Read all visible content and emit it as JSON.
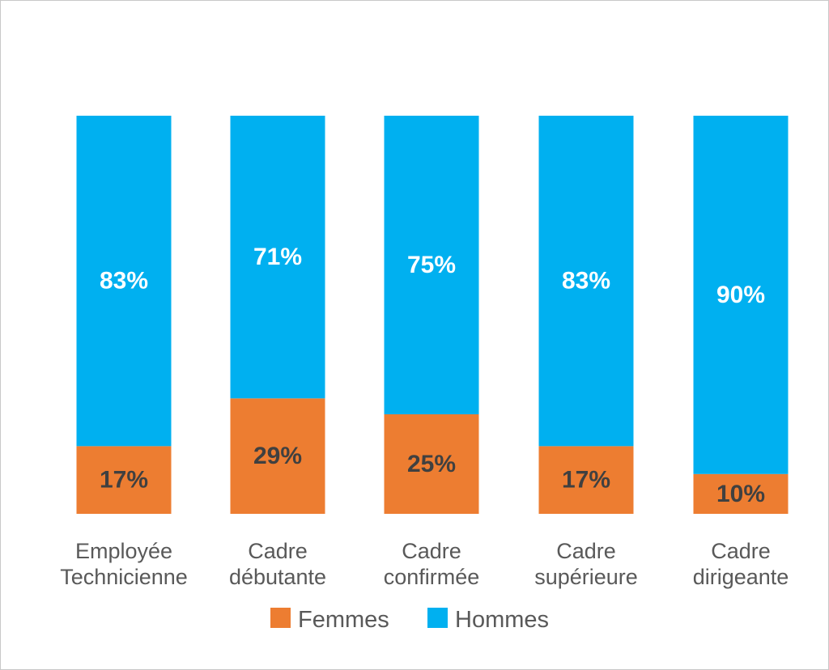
{
  "chart_data": {
    "type": "bar",
    "stacked": true,
    "categories": [
      [
        "Employée",
        "Technicienne"
      ],
      [
        "Cadre",
        "débutante"
      ],
      [
        "Cadre",
        "confirmée"
      ],
      [
        "Cadre",
        "supérieure"
      ],
      [
        "Cadre",
        "dirigeante"
      ]
    ],
    "series": [
      {
        "name": "Femmes",
        "values": [
          17,
          29,
          25,
          17,
          10
        ],
        "labels": [
          "17%",
          "29%",
          "25%",
          "17%",
          "10%"
        ],
        "color": "#ED7D31",
        "label_color": "#404040"
      },
      {
        "name": "Hommes",
        "values": [
          83,
          71,
          75,
          83,
          90
        ],
        "labels": [
          "83%",
          "71%",
          "75%",
          "83%",
          "90%"
        ],
        "color": "#00B0F0",
        "label_color": "#ffffff"
      }
    ],
    "ylim": [
      0,
      100
    ],
    "grid": false,
    "legend_position": "bottom"
  }
}
